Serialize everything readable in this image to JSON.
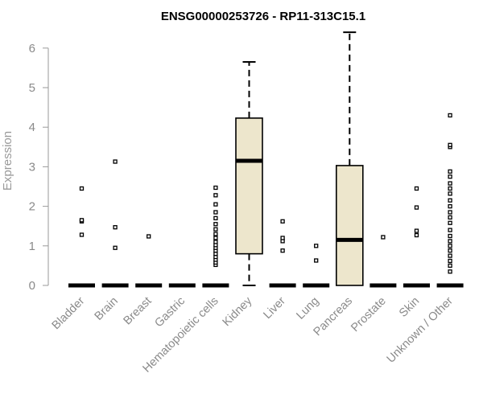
{
  "chart_data": {
    "type": "box",
    "title": "ENSG00000253726 - RP11-313C15.1",
    "xlabel": "",
    "ylabel": "Expression",
    "ylim": [
      0,
      6.5
    ],
    "yticks": [
      0,
      1,
      2,
      3,
      4,
      5,
      6
    ],
    "box_fill": "#ede6cc",
    "categories": [
      "Bladder",
      "Brain",
      "Breast",
      "Gastric",
      "Hematopoietic cells",
      "Kidney",
      "Liver",
      "Lung",
      "Pancreas",
      "Prostate",
      "Skin",
      "Unknown / Other"
    ],
    "boxes": [
      {
        "q1": 0,
        "median": 0,
        "q3": 0,
        "whisker_low": 0,
        "whisker_high": 0,
        "outliers": [
          1.28,
          1.62,
          1.65,
          2.45
        ]
      },
      {
        "q1": 0,
        "median": 0,
        "q3": 0,
        "whisker_low": 0,
        "whisker_high": 0,
        "outliers": [
          0.95,
          1.47,
          3.13
        ]
      },
      {
        "q1": 0,
        "median": 0,
        "q3": 0,
        "whisker_low": 0,
        "whisker_high": 0,
        "outliers": [
          1.24
        ]
      },
      {
        "q1": 0,
        "median": 0,
        "q3": 0,
        "whisker_low": 0,
        "whisker_high": 0,
        "outliers": []
      },
      {
        "q1": 0,
        "median": 0,
        "q3": 0,
        "whisker_low": 0,
        "whisker_high": 0,
        "outliers": [
          0.52,
          0.58,
          0.65,
          0.72,
          0.8,
          0.88,
          0.95,
          1.02,
          1.1,
          1.2,
          1.3,
          1.42,
          1.55,
          1.7,
          1.85,
          2.05,
          2.28,
          2.47
        ]
      },
      {
        "q1": 0.8,
        "median": 3.15,
        "q3": 4.23,
        "whisker_low": 0,
        "whisker_high": 5.65,
        "outliers": []
      },
      {
        "q1": 0,
        "median": 0,
        "q3": 0,
        "whisker_low": 0,
        "whisker_high": 0,
        "outliers": [
          0.88,
          1.12,
          1.2,
          1.62
        ]
      },
      {
        "q1": 0,
        "median": 0,
        "q3": 0,
        "whisker_low": 0,
        "whisker_high": 0,
        "outliers": [
          0.63,
          1.0
        ]
      },
      {
        "q1": 0,
        "median": 1.15,
        "q3": 3.03,
        "whisker_low": 0,
        "whisker_high": 6.4,
        "outliers": []
      },
      {
        "q1": 0,
        "median": 0,
        "q3": 0,
        "whisker_low": 0,
        "whisker_high": 0,
        "outliers": [
          1.22
        ]
      },
      {
        "q1": 0,
        "median": 0,
        "q3": 0,
        "whisker_low": 0,
        "whisker_high": 0,
        "outliers": [
          1.27,
          1.38,
          1.97,
          2.45
        ]
      },
      {
        "q1": 0,
        "median": 0,
        "q3": 0,
        "whisker_low": 0,
        "whisker_high": 0,
        "outliers": [
          0.35,
          0.5,
          0.62,
          0.75,
          0.88,
          1.0,
          1.12,
          1.25,
          1.4,
          1.58,
          1.72,
          1.85,
          2.0,
          2.15,
          2.32,
          2.45,
          2.58,
          2.75,
          2.88,
          3.5,
          3.55,
          4.3
        ]
      }
    ]
  }
}
